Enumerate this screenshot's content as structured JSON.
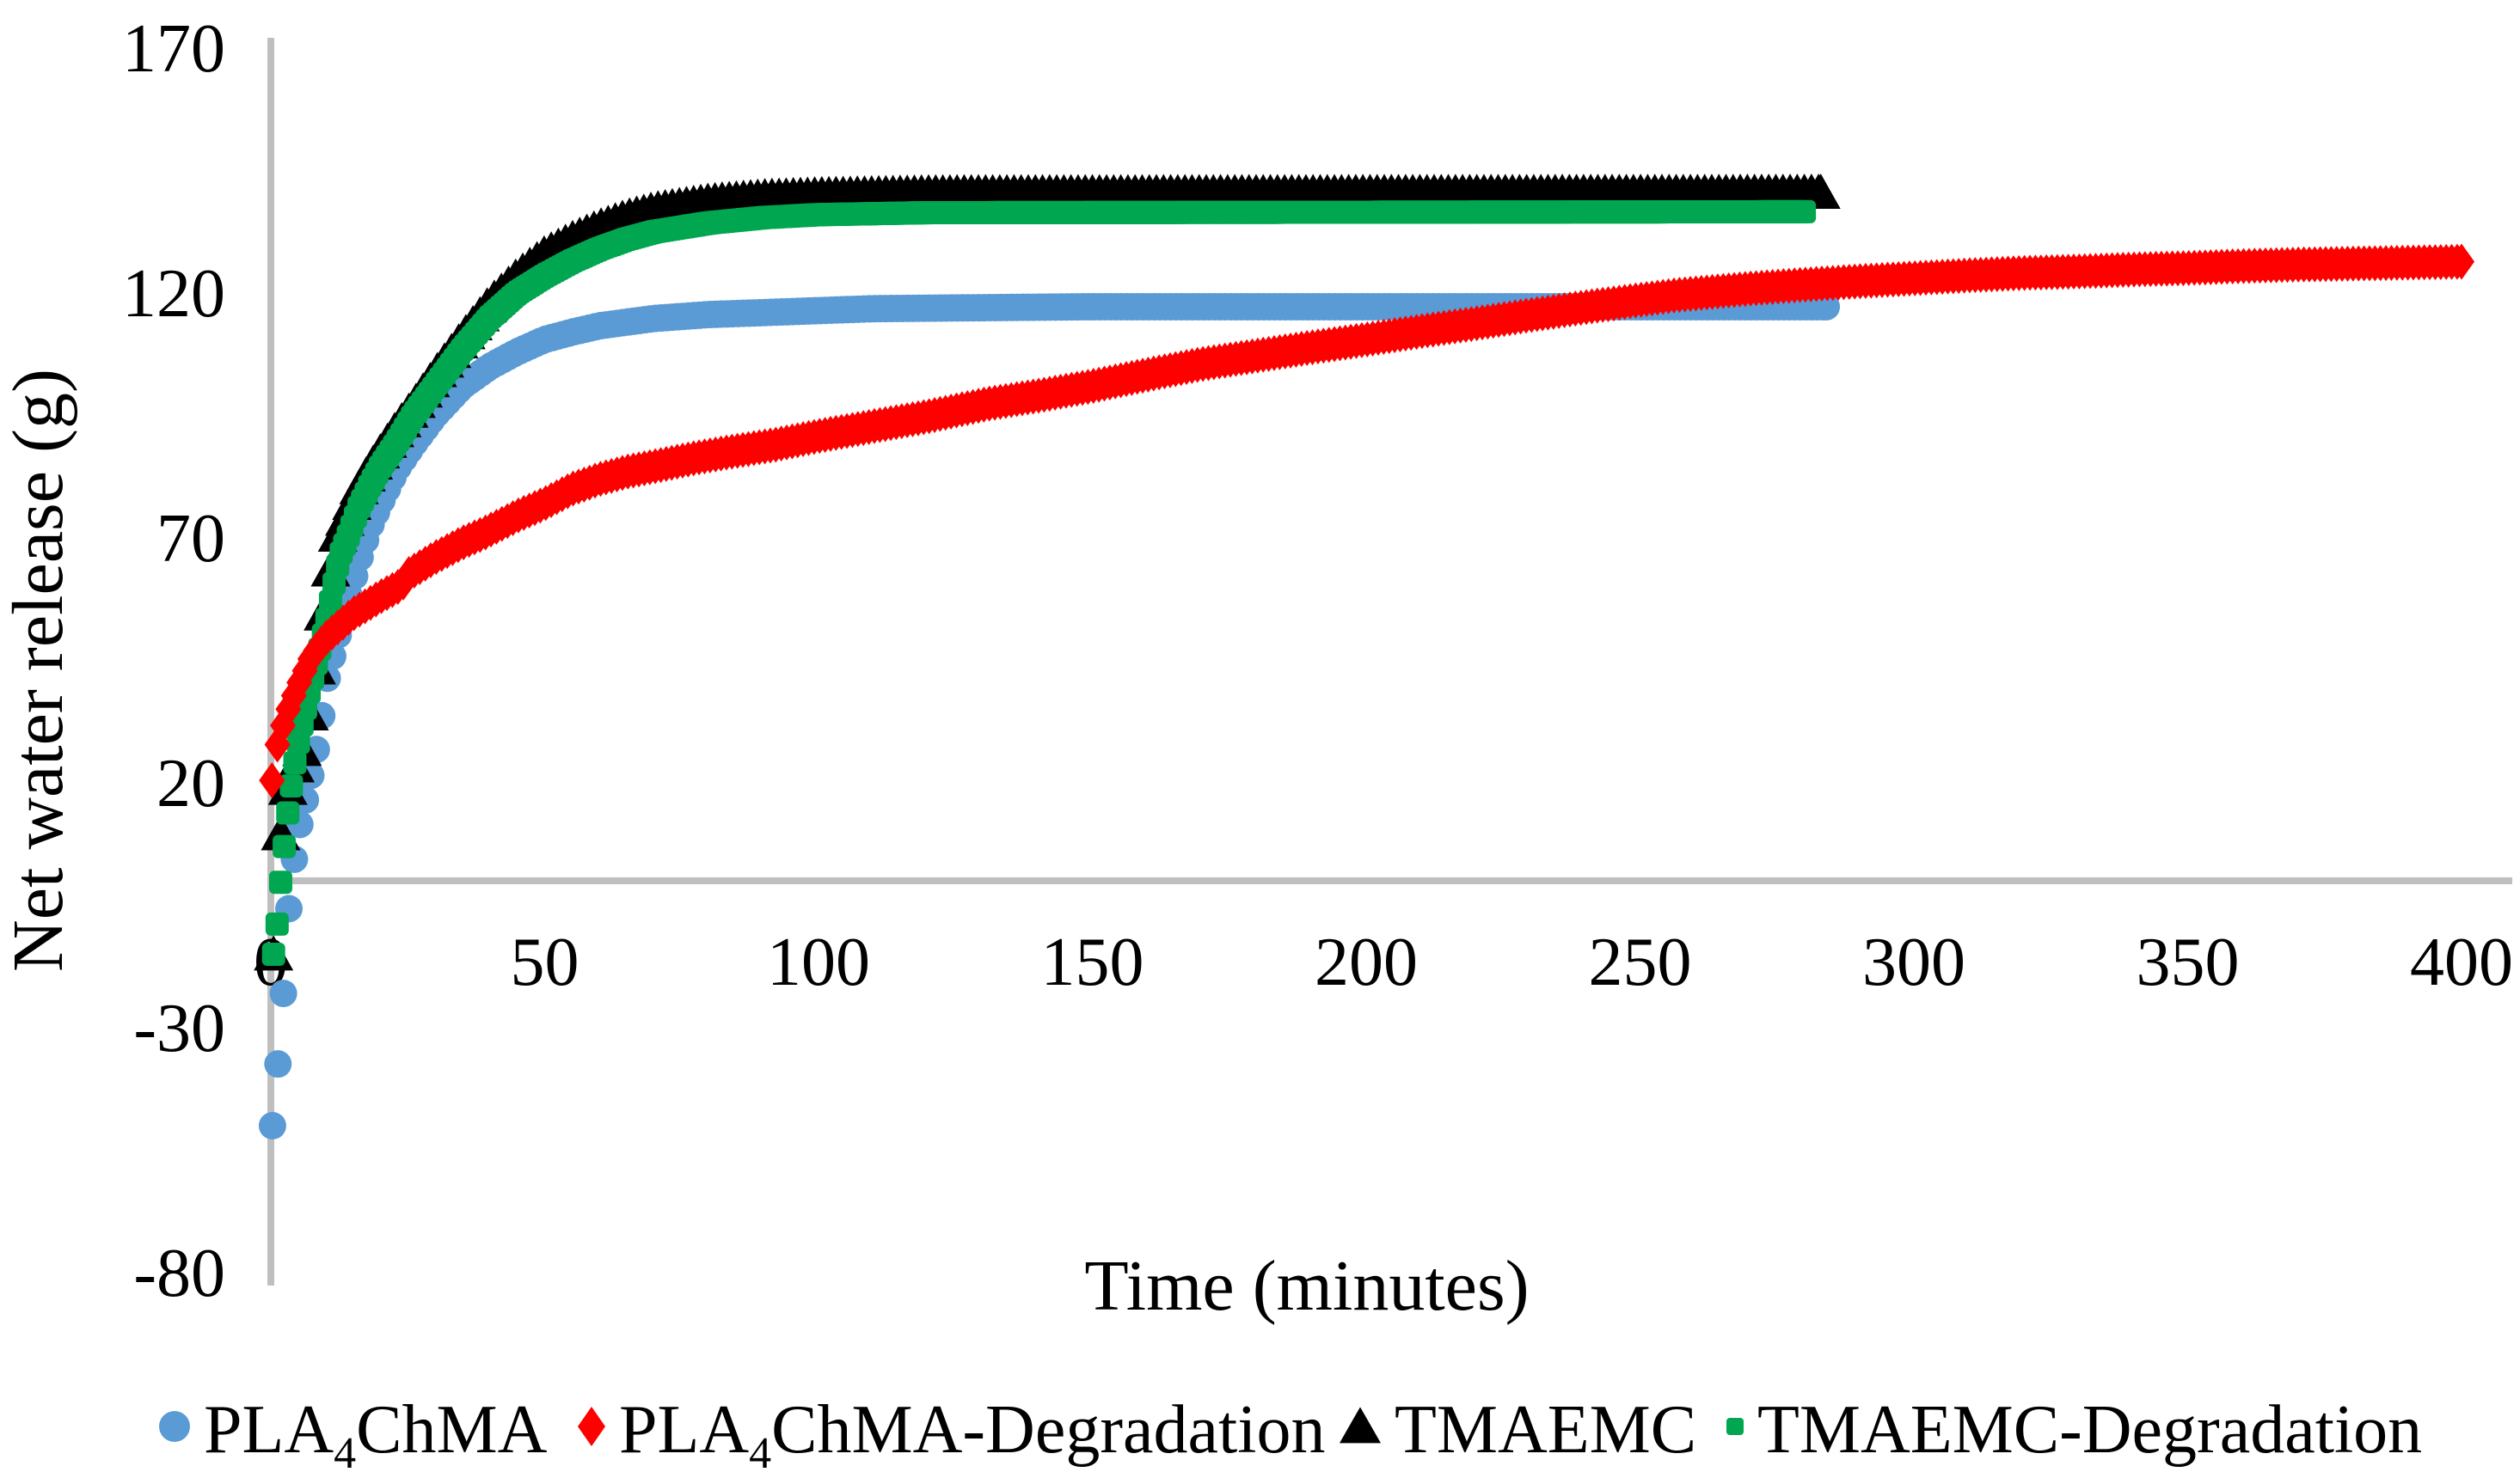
{
  "chart_data": {
    "type": "scatter",
    "title": "",
    "xlabel": "Time (minutes)",
    "ylabel": "Net water release (g)",
    "x_ticks": [
      0,
      50,
      100,
      150,
      200,
      250,
      300,
      350,
      400
    ],
    "y_ticks": [
      -80,
      -30,
      20,
      70,
      120,
      170
    ],
    "xlim": [
      0,
      410
    ],
    "ylim": [
      -80,
      170
    ],
    "grid": false,
    "legend_position": "bottom",
    "axis_color": "#BFBFBF",
    "text_color": "#000000",
    "draw_order": [
      "PLA4ChMA",
      "TMAEMC",
      "TMAEMC-Degradation",
      "PLA4ChMA-Degradation"
    ],
    "series": [
      {
        "name": "PLA4ChMA",
        "label": "PLA4ChMA",
        "label_parts": [
          {
            "t": "PLA"
          },
          {
            "t": "4",
            "sub": true
          },
          {
            "t": "ChMA"
          }
        ],
        "marker": "circle",
        "color": "#5B9BD5",
        "marker_step": 1.0,
        "points": [
          [
            0.3,
            -50
          ],
          [
            1,
            -41
          ],
          [
            2,
            -29
          ],
          [
            3,
            -9
          ],
          [
            4,
            2
          ],
          [
            5,
            10
          ],
          [
            6.5,
            17.5
          ],
          [
            8,
            25
          ],
          [
            9,
            31
          ],
          [
            10,
            40
          ],
          [
            12,
            49
          ],
          [
            14,
            57
          ],
          [
            16,
            65
          ],
          [
            18,
            72
          ],
          [
            20,
            77
          ],
          [
            23,
            84
          ],
          [
            26,
            89
          ],
          [
            30,
            95
          ],
          [
            35,
            101
          ],
          [
            40,
            105
          ],
          [
            45,
            108
          ],
          [
            50,
            110.5
          ],
          [
            55,
            112
          ],
          [
            60,
            113.3
          ],
          [
            70,
            114.8
          ],
          [
            80,
            115.6
          ],
          [
            90,
            116
          ],
          [
            100,
            116.4
          ],
          [
            110,
            116.8
          ],
          [
            150,
            117.2
          ],
          [
            284,
            117.2
          ]
        ]
      },
      {
        "name": "PLA4ChMA-Degradation",
        "label": "PLA4ChMA-Degradation",
        "label_parts": [
          {
            "t": "PLA"
          },
          {
            "t": "4",
            "sub": true
          },
          {
            "t": "ChMA-Degradation"
          }
        ],
        "marker": "diamond",
        "color": "#FF0000",
        "marker_step": 1.0,
        "points": [
          [
            0.2,
            20.5
          ],
          [
            0.5,
            23
          ],
          [
            1,
            27
          ],
          [
            2,
            31
          ],
          [
            3,
            34.5
          ],
          [
            5,
            40
          ],
          [
            7.5,
            46
          ],
          [
            10,
            49.5
          ],
          [
            15,
            54.5
          ],
          [
            20,
            58
          ],
          [
            24,
            60.5
          ],
          [
            25,
            62.5
          ],
          [
            30,
            66
          ],
          [
            35,
            69
          ],
          [
            39,
            71
          ],
          [
            45,
            74.5
          ],
          [
            50,
            77
          ],
          [
            55,
            80
          ],
          [
            60,
            82
          ],
          [
            65,
            83.5
          ],
          [
            70,
            84.6
          ],
          [
            77,
            86.2
          ],
          [
            83,
            87.4
          ],
          [
            92,
            89
          ],
          [
            100,
            90.8
          ],
          [
            110,
            92.8
          ],
          [
            120,
            94.8
          ],
          [
            131,
            97.4
          ],
          [
            140,
            99
          ],
          [
            150,
            101
          ],
          [
            160,
            103.3
          ],
          [
            170,
            105.5
          ],
          [
            180,
            107.2
          ],
          [
            190,
            108.9
          ],
          [
            200,
            110.5
          ],
          [
            210,
            112.2
          ],
          [
            220,
            113.8
          ],
          [
            230,
            115.5
          ],
          [
            240,
            117.1
          ],
          [
            250,
            118.6
          ],
          [
            257,
            119.6
          ],
          [
            270,
            120.9
          ],
          [
            280,
            121.7
          ],
          [
            290,
            122.4
          ],
          [
            300,
            123
          ],
          [
            310,
            123.6
          ],
          [
            320,
            124.1
          ],
          [
            330,
            124.4
          ],
          [
            340,
            124.8
          ],
          [
            350,
            125.1
          ],
          [
            360,
            125.5
          ],
          [
            370,
            125.8
          ],
          [
            380,
            126
          ],
          [
            390,
            126.2
          ],
          [
            400,
            126.4
          ]
        ]
      },
      {
        "name": "TMAEMC",
        "label": "TMAEMC",
        "label_parts": [
          {
            "t": "TMAEMC"
          }
        ],
        "marker": "triangle",
        "color": "#000000",
        "marker_step": 1.3,
        "points": [
          [
            0.5,
            -15
          ],
          [
            1.3,
            5
          ],
          [
            2.4,
            15
          ],
          [
            3.5,
            21
          ],
          [
            5,
            25
          ],
          [
            6,
            27.5
          ],
          [
            7,
            34
          ],
          [
            8,
            41
          ],
          [
            9,
            49
          ],
          [
            10,
            58
          ],
          [
            12,
            70
          ],
          [
            14,
            75
          ],
          [
            16,
            80
          ],
          [
            18,
            84
          ],
          [
            20,
            87.5
          ],
          [
            23,
            92.5
          ],
          [
            26,
            97
          ],
          [
            30,
            103.5
          ],
          [
            35,
            111
          ],
          [
            40,
            118
          ],
          [
            45,
            123.5
          ],
          [
            50,
            128
          ],
          [
            55,
            131
          ],
          [
            60,
            133.5
          ],
          [
            65,
            135.5
          ],
          [
            70,
            137
          ],
          [
            80,
            138.7
          ],
          [
            90,
            139.6
          ],
          [
            100,
            140
          ],
          [
            120,
            140.4
          ],
          [
            283,
            140.5
          ]
        ]
      },
      {
        "name": "TMAEMC-Degradation",
        "label": "TMAEMC-Degradation",
        "label_parts": [
          {
            "t": "TMAEMC-Degradation"
          }
        ],
        "marker": "square",
        "color": "#00A650",
        "marker_step": 0.65,
        "points": [
          [
            0.5,
            -15
          ],
          [
            1.1,
            -9.5
          ],
          [
            1.9,
            1
          ],
          [
            3,
            13
          ],
          [
            4,
            21.5
          ],
          [
            5,
            28
          ],
          [
            6,
            33.5
          ],
          [
            7,
            38.5
          ],
          [
            8,
            43
          ],
          [
            9,
            47.5
          ],
          [
            10,
            52
          ],
          [
            12.5,
            66
          ],
          [
            14,
            70
          ],
          [
            16,
            76
          ],
          [
            18,
            80.5
          ],
          [
            20,
            84.5
          ],
          [
            23,
            89.5
          ],
          [
            26,
            95
          ],
          [
            30,
            101
          ],
          [
            35,
            108.5
          ],
          [
            40,
            115
          ],
          [
            45,
            120
          ],
          [
            50,
            123.5
          ],
          [
            55,
            126.5
          ],
          [
            60,
            129
          ],
          [
            65,
            131
          ],
          [
            70,
            132.5
          ],
          [
            80,
            134.3
          ],
          [
            90,
            135.4
          ],
          [
            100,
            136
          ],
          [
            120,
            136.4
          ],
          [
            280,
            136.6
          ]
        ]
      }
    ]
  }
}
